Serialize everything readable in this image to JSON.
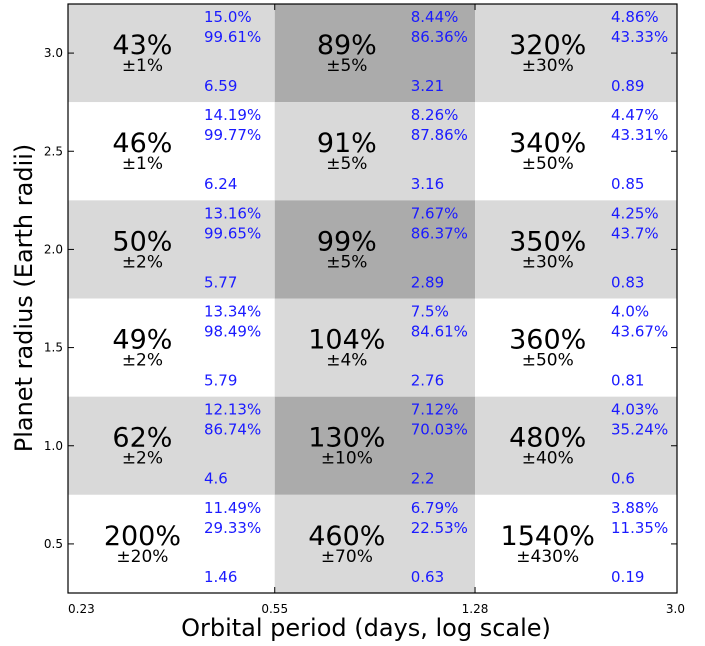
{
  "chart_data": {
    "type": "heatmap",
    "xlabel": "Orbital period (days, log scale)",
    "ylabel": "Planet radius (Earth radii)",
    "x_bin_edges": [
      0.23,
      0.55,
      1.28,
      3.0
    ],
    "x_tick_labels": [
      "0.23",
      "0.55",
      "1.28",
      "3.0"
    ],
    "x_scale": "log",
    "y_ticks": [
      0.5,
      1.0,
      1.5,
      2.0,
      2.5,
      3.0
    ],
    "y_tick_labels": [
      "0.5",
      "1.0",
      "1.5",
      "2.0",
      "2.5",
      "3.0"
    ],
    "y_bin_centers": [
      3.0,
      2.5,
      2.0,
      1.5,
      1.0,
      0.5
    ],
    "colors": {
      "light": "#d9d9d9",
      "dark": "#ababab",
      "white": "#ffffff",
      "side_text": "#1a1aff"
    },
    "rows": [
      {
        "cells": [
          {
            "value": "43%",
            "error": "±1%",
            "side_top": "15.0%",
            "side_mid": "99.61%",
            "side_bottom": "6.59",
            "shade": "light"
          },
          {
            "value": "89%",
            "error": "±5%",
            "side_top": "8.44%",
            "side_mid": "86.36%",
            "side_bottom": "3.21",
            "shade": "dark"
          },
          {
            "value": "320%",
            "error": "±30%",
            "side_top": "4.86%",
            "side_mid": "43.33%",
            "side_bottom": "0.89",
            "shade": "light"
          }
        ]
      },
      {
        "cells": [
          {
            "value": "46%",
            "error": "±1%",
            "side_top": "14.19%",
            "side_mid": "99.77%",
            "side_bottom": "6.24",
            "shade": "white"
          },
          {
            "value": "91%",
            "error": "±5%",
            "side_top": "8.26%",
            "side_mid": "87.86%",
            "side_bottom": "3.16",
            "shade": "light"
          },
          {
            "value": "340%",
            "error": "±50%",
            "side_top": "4.47%",
            "side_mid": "43.31%",
            "side_bottom": "0.85",
            "shade": "white"
          }
        ]
      },
      {
        "cells": [
          {
            "value": "50%",
            "error": "±2%",
            "side_top": "13.16%",
            "side_mid": "99.65%",
            "side_bottom": "5.77",
            "shade": "light"
          },
          {
            "value": "99%",
            "error": "±5%",
            "side_top": "7.67%",
            "side_mid": "86.37%",
            "side_bottom": "2.89",
            "shade": "dark"
          },
          {
            "value": "350%",
            "error": "±30%",
            "side_top": "4.25%",
            "side_mid": "43.7%",
            "side_bottom": "0.83",
            "shade": "light"
          }
        ]
      },
      {
        "cells": [
          {
            "value": "49%",
            "error": "±2%",
            "side_top": "13.34%",
            "side_mid": "98.49%",
            "side_bottom": "5.79",
            "shade": "white"
          },
          {
            "value": "104%",
            "error": "±4%",
            "side_top": "7.5%",
            "side_mid": "84.61%",
            "side_bottom": "2.76",
            "shade": "light"
          },
          {
            "value": "360%",
            "error": "±50%",
            "side_top": "4.0%",
            "side_mid": "43.67%",
            "side_bottom": "0.81",
            "shade": "white"
          }
        ]
      },
      {
        "cells": [
          {
            "value": "62%",
            "error": "±2%",
            "side_top": "12.13%",
            "side_mid": "86.74%",
            "side_bottom": "4.6",
            "shade": "light"
          },
          {
            "value": "130%",
            "error": "±10%",
            "side_top": "7.12%",
            "side_mid": "70.03%",
            "side_bottom": "2.2",
            "shade": "dark"
          },
          {
            "value": "480%",
            "error": "±40%",
            "side_top": "4.03%",
            "side_mid": "35.24%",
            "side_bottom": "0.6",
            "shade": "light"
          }
        ]
      },
      {
        "cells": [
          {
            "value": "200%",
            "error": "±20%",
            "side_top": "11.49%",
            "side_mid": "29.33%",
            "side_bottom": "1.46",
            "shade": "white"
          },
          {
            "value": "460%",
            "error": "±70%",
            "side_top": "6.79%",
            "side_mid": "22.53%",
            "side_bottom": "0.63",
            "shade": "light"
          },
          {
            "value": "1540%",
            "error": "±430%",
            "side_top": "3.88%",
            "side_mid": "11.35%",
            "side_bottom": "0.19",
            "shade": "white"
          }
        ]
      }
    ]
  }
}
